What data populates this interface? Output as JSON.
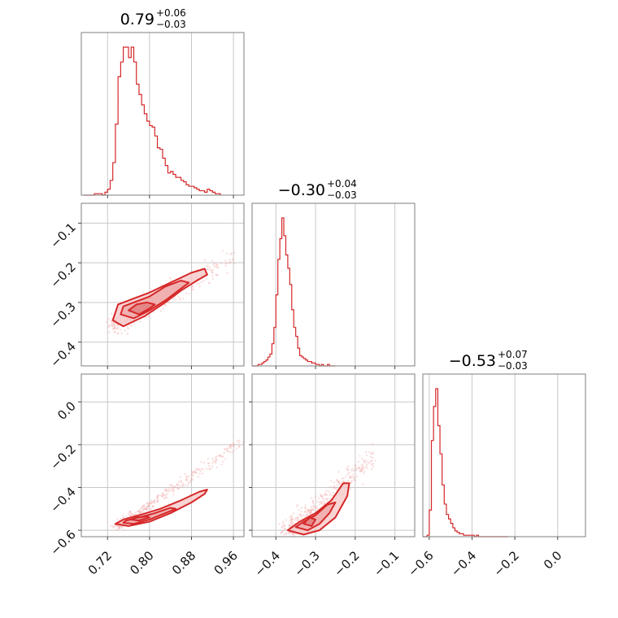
{
  "chart_data": {
    "type": "corner",
    "color": "#d62728",
    "parameters": [
      {
        "title_value": "0.79",
        "title_plus": "+0.06",
        "title_minus": "−0.03"
      },
      {
        "title_value": "−0.30",
        "title_plus": "+0.04",
        "title_minus": "−0.03"
      },
      {
        "title_value": "−0.53",
        "title_plus": "+0.07",
        "title_minus": "−0.03"
      }
    ],
    "ranges": [
      [
        0.67,
        0.98
      ],
      [
        -0.46,
        -0.05
      ],
      [
        -0.63,
        0.13
      ]
    ],
    "ticks": [
      {
        "values": [
          0.72,
          0.8,
          0.88,
          0.96
        ],
        "labels": [
          "0.72",
          "0.80",
          "0.88",
          "0.96"
        ]
      },
      {
        "values": [
          -0.4,
          -0.3,
          -0.2,
          -0.1
        ],
        "labels": [
          "−0.4",
          "−0.3",
          "−0.2",
          "−0.1"
        ]
      },
      {
        "values": [
          -0.6,
          -0.4,
          -0.2,
          0.0
        ],
        "labels": [
          "−0.6",
          "−0.4",
          "−0.2",
          "0.0"
        ]
      }
    ],
    "histograms": [
      {
        "param": 0,
        "bin_start": 0.675,
        "bin_width": 0.005,
        "counts": [
          0,
          0,
          0,
          0,
          1,
          1,
          1,
          0,
          2,
          4,
          10,
          22,
          48,
          80,
          90,
          100,
          100,
          93,
          100,
          90,
          75,
          68,
          61,
          55,
          50,
          47,
          46,
          40,
          32,
          31,
          25,
          20,
          15,
          16,
          14,
          12,
          12,
          10,
          9,
          7,
          6,
          6,
          5,
          4,
          3,
          3,
          2,
          4,
          3,
          2,
          1,
          1
        ]
      },
      {
        "param": 1,
        "bin_start": -0.46,
        "bin_width": 0.005,
        "counts": [
          0,
          0,
          0,
          1,
          1,
          2,
          3,
          4,
          6,
          8,
          15,
          26,
          48,
          72,
          86,
          100,
          88,
          75,
          66,
          55,
          38,
          26,
          20,
          12,
          7,
          6,
          5,
          4,
          3,
          3,
          2,
          2,
          1,
          1,
          0,
          1,
          0,
          0,
          1,
          0,
          0,
          0
        ]
      },
      {
        "param": 2,
        "bin_start": -0.63,
        "bin_width": 0.01,
        "counts": [
          0,
          0,
          1,
          18,
          65,
          88,
          100,
          75,
          56,
          35,
          22,
          15,
          12,
          9,
          6,
          4,
          3,
          2,
          2,
          1,
          1,
          1,
          1,
          1,
          0,
          1,
          0,
          0,
          0,
          0,
          0,
          0,
          0,
          0,
          0,
          0,
          0,
          0,
          0,
          0
        ]
      }
    ],
    "scatter_pairs": [
      {
        "x_param": 0,
        "y_param": 1,
        "trend": {
          "x": [
            0.73,
            0.96
          ],
          "y": [
            -0.36,
            -0.19
          ]
        },
        "spread": 0.018,
        "n": 320
      },
      {
        "x_param": 0,
        "y_param": 2,
        "trend": {
          "x": [
            0.74,
            0.98
          ],
          "y": [
            -0.58,
            -0.18
          ]
        },
        "spread": 0.015,
        "n": 300
      },
      {
        "x_param": 1,
        "y_param": 2,
        "trend": {
          "x": [
            -0.37,
            -0.15
          ],
          "y": [
            -0.6,
            -0.25
          ]
        },
        "spread": 0.03,
        "n": 320
      }
    ],
    "contours": [
      {
        "x_param": 0,
        "y_param": 1,
        "levels": [
          [
            [
              0.73,
              -0.345
            ],
            [
              0.75,
              -0.36
            ],
            [
              0.79,
              -0.335
            ],
            [
              0.83,
              -0.3
            ],
            [
              0.86,
              -0.27
            ],
            [
              0.89,
              -0.245
            ],
            [
              0.91,
              -0.23
            ],
            [
              0.905,
              -0.215
            ],
            [
              0.88,
              -0.225
            ],
            [
              0.84,
              -0.25
            ],
            [
              0.8,
              -0.275
            ],
            [
              0.77,
              -0.29
            ],
            [
              0.74,
              -0.305
            ],
            [
              0.73,
              -0.345
            ]
          ],
          [
            [
              0.745,
              -0.33
            ],
            [
              0.77,
              -0.34
            ],
            [
              0.8,
              -0.32
            ],
            [
              0.83,
              -0.295
            ],
            [
              0.86,
              -0.265
            ],
            [
              0.875,
              -0.25
            ],
            [
              0.86,
              -0.245
            ],
            [
              0.83,
              -0.26
            ],
            [
              0.8,
              -0.285
            ],
            [
              0.77,
              -0.3
            ],
            [
              0.75,
              -0.31
            ],
            [
              0.745,
              -0.33
            ]
          ],
          [
            [
              0.76,
              -0.32
            ],
            [
              0.78,
              -0.33
            ],
            [
              0.8,
              -0.315
            ],
            [
              0.81,
              -0.305
            ],
            [
              0.795,
              -0.3
            ],
            [
              0.775,
              -0.305
            ],
            [
              0.76,
              -0.32
            ]
          ]
        ]
      },
      {
        "x_param": 0,
        "y_param": 2,
        "levels": [
          [
            [
              0.735,
              -0.57
            ],
            [
              0.76,
              -0.58
            ],
            [
              0.8,
              -0.56
            ],
            [
              0.84,
              -0.52
            ],
            [
              0.88,
              -0.47
            ],
            [
              0.905,
              -0.43
            ],
            [
              0.91,
              -0.41
            ],
            [
              0.895,
              -0.42
            ],
            [
              0.86,
              -0.46
            ],
            [
              0.82,
              -0.5
            ],
            [
              0.78,
              -0.53
            ],
            [
              0.75,
              -0.55
            ],
            [
              0.735,
              -0.57
            ]
          ],
          [
            [
              0.75,
              -0.565
            ],
            [
              0.77,
              -0.57
            ],
            [
              0.8,
              -0.55
            ],
            [
              0.83,
              -0.52
            ],
            [
              0.85,
              -0.5
            ],
            [
              0.84,
              -0.495
            ],
            [
              0.81,
              -0.52
            ],
            [
              0.78,
              -0.54
            ],
            [
              0.755,
              -0.555
            ],
            [
              0.75,
              -0.565
            ]
          ],
          [
            [
              0.765,
              -0.55
            ],
            [
              0.78,
              -0.555
            ],
            [
              0.8,
              -0.54
            ],
            [
              0.795,
              -0.535
            ],
            [
              0.775,
              -0.54
            ],
            [
              0.765,
              -0.55
            ]
          ]
        ]
      },
      {
        "x_param": 1,
        "y_param": 2,
        "levels": [
          [
            [
              -0.37,
              -0.6
            ],
            [
              -0.33,
              -0.62
            ],
            [
              -0.29,
              -0.6
            ],
            [
              -0.25,
              -0.54
            ],
            [
              -0.22,
              -0.44
            ],
            [
              -0.215,
              -0.38
            ],
            [
              -0.23,
              -0.38
            ],
            [
              -0.26,
              -0.46
            ],
            [
              -0.3,
              -0.52
            ],
            [
              -0.34,
              -0.56
            ],
            [
              -0.37,
              -0.6
            ]
          ],
          [
            [
              -0.35,
              -0.585
            ],
            [
              -0.32,
              -0.6
            ],
            [
              -0.29,
              -0.57
            ],
            [
              -0.265,
              -0.52
            ],
            [
              -0.25,
              -0.47
            ],
            [
              -0.27,
              -0.48
            ],
            [
              -0.3,
              -0.53
            ],
            [
              -0.33,
              -0.56
            ],
            [
              -0.35,
              -0.585
            ]
          ],
          [
            [
              -0.33,
              -0.57
            ],
            [
              -0.31,
              -0.58
            ],
            [
              -0.3,
              -0.55
            ],
            [
              -0.315,
              -0.54
            ],
            [
              -0.33,
              -0.57
            ]
          ]
        ]
      }
    ],
    "grid": true
  }
}
